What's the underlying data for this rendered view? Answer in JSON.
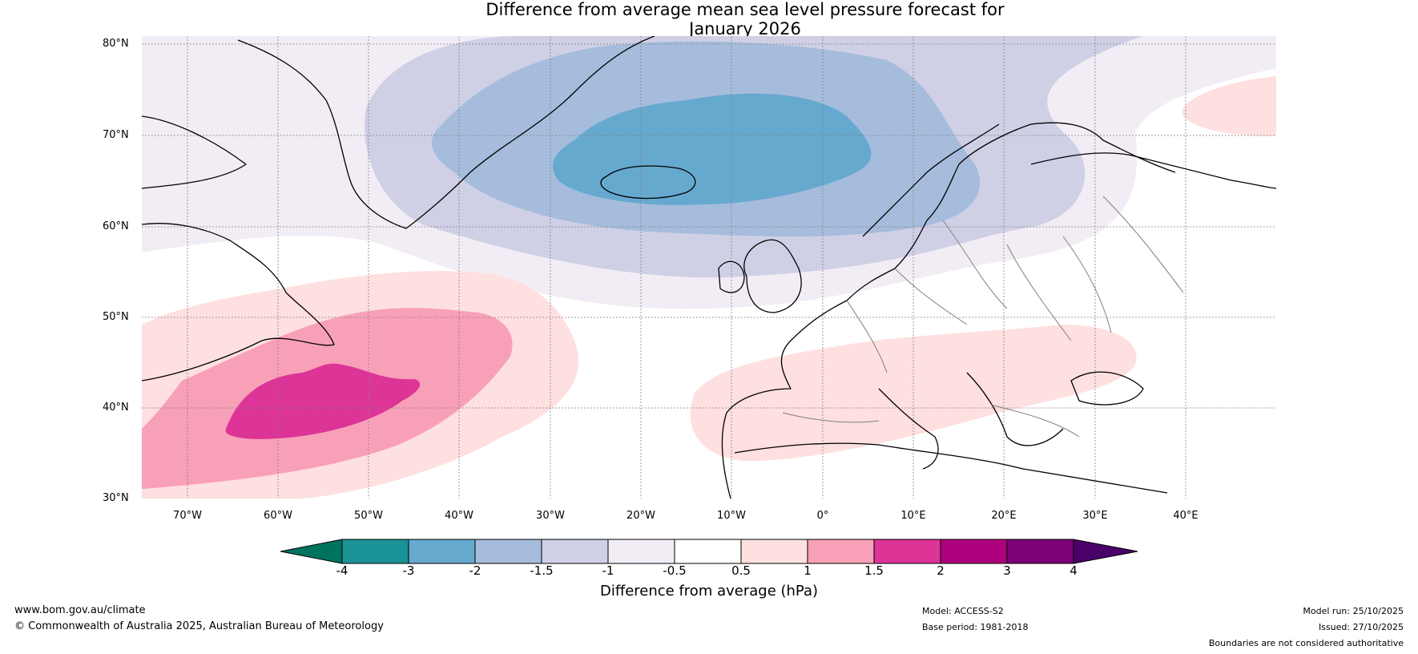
{
  "title": {
    "line1": "Difference from average mean sea level pressure forecast for",
    "line2": "January 2026"
  },
  "map": {
    "lat_labels": [
      "80°N",
      "70°N",
      "60°N",
      "50°N",
      "40°N",
      "30°N"
    ],
    "lon_labels": [
      "70°W",
      "60°W",
      "50°W",
      "40°W",
      "30°W",
      "20°W",
      "10°W",
      "0°",
      "10°E",
      "20°E",
      "30°E",
      "40°E"
    ]
  },
  "colorbar": {
    "title": "Difference from average (hPa)",
    "ticks": [
      "-4",
      "-3",
      "-2",
      "-1.5",
      "-1",
      "-0.5",
      "0.5",
      "1",
      "1.5",
      "2",
      "3",
      "4"
    ],
    "colors": {
      "extend_low": "#00735f",
      "b_-4": "#1a9296",
      "b_-3": "#66a9cf",
      "b_-2": "#a6bcdc",
      "b_-1.5": "#cfd0e6",
      "b_-1": "#f2edf4",
      "b_-0.5": "#ffffff",
      "b_0.5": "#fde0df",
      "b_1": "#f9a0b9",
      "b_1.5": "#dd3497",
      "b_2": "#ae017e",
      "b_3": "#7a0177",
      "extend_high": "#49006a"
    }
  },
  "footer": {
    "website": "www.bom.gov.au/climate",
    "copyright": "© Commonwealth of Australia 2025, Australian Bureau of Meteorology",
    "model": "Model: ACCESS-S2",
    "base_period": "Base period: 1981-2018",
    "model_run": "Model run: 25/10/2025",
    "issued": "Issued: 27/10/2025",
    "disclaimer": "Boundaries are not considered authoritative"
  }
}
